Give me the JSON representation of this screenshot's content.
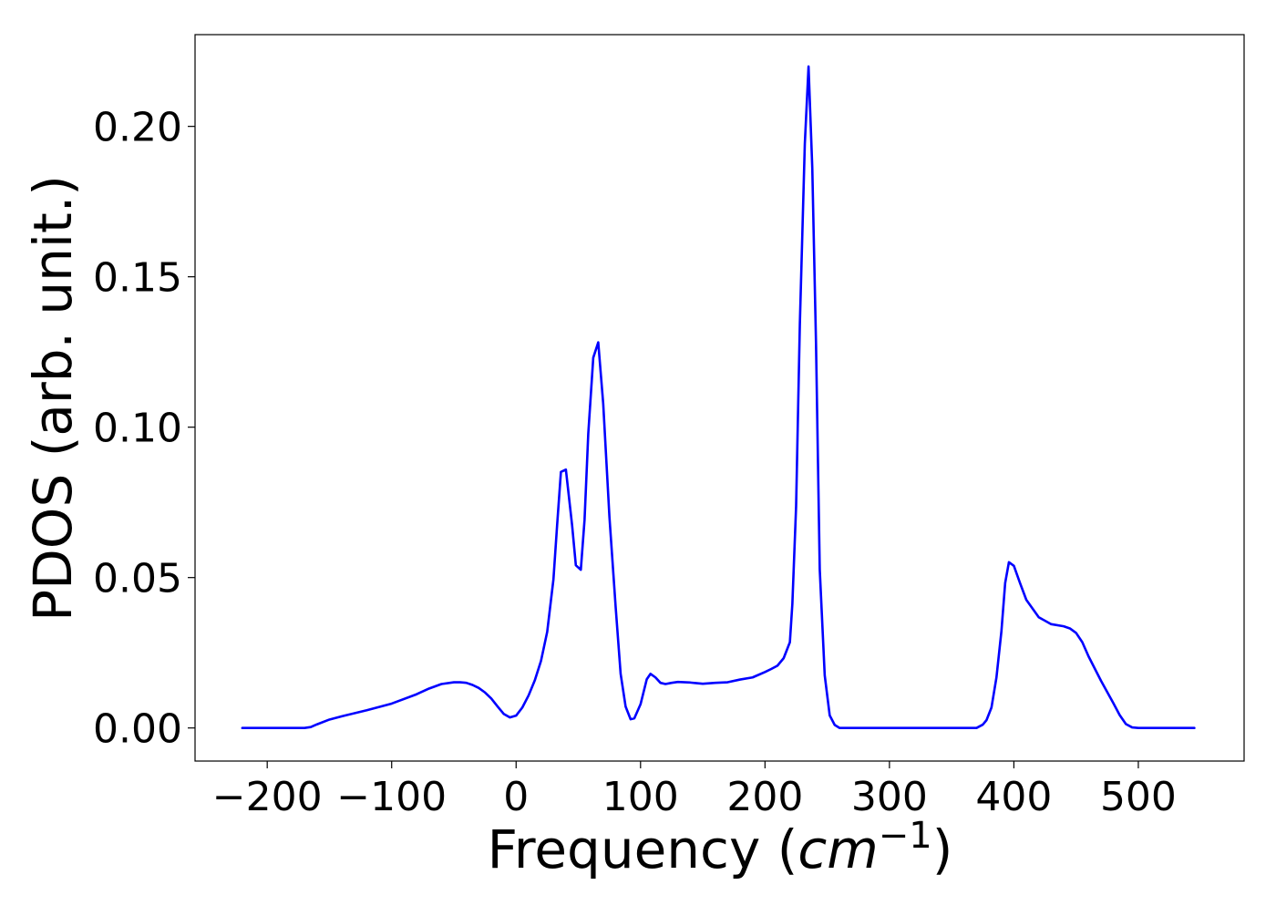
{
  "chart_data": {
    "type": "line",
    "title": "",
    "xlabel_text": "Frequency (",
    "xlabel_math": "cm",
    "xlabel_sup": "−1",
    "xlabel_close": ")",
    "ylabel": "PDOS (arb. unit.)",
    "xlim": [
      -258,
      585
    ],
    "ylim": [
      -0.011,
      0.2305
    ],
    "x_ticks": [
      -200,
      -100,
      0,
      100,
      200,
      300,
      400,
      500
    ],
    "x_tick_labels": [
      "−200",
      "−100",
      "0",
      "100",
      "200",
      "300",
      "400",
      "500"
    ],
    "y_ticks": [
      0.0,
      0.05,
      0.1,
      0.15,
      0.2
    ],
    "y_tick_labels": [
      "0.00",
      "0.05",
      "0.10",
      "0.15",
      "0.20"
    ],
    "grid": false,
    "legend": false,
    "series": [
      {
        "color": "#0000ff",
        "x": [
          -220,
          -170,
          -165,
          -160,
          -150,
          -140,
          -120,
          -100,
          -80,
          -70,
          -60,
          -50,
          -45,
          -40,
          -35,
          -30,
          -25,
          -20,
          -15,
          -10,
          -5,
          0,
          5,
          10,
          15,
          20,
          25,
          30,
          33,
          36,
          40,
          45,
          48,
          52,
          55,
          58,
          62,
          66,
          70,
          75,
          80,
          84,
          88,
          92,
          95,
          100,
          105,
          108,
          112,
          116,
          120,
          125,
          130,
          140,
          150,
          160,
          170,
          180,
          190,
          200,
          205,
          210,
          215,
          220,
          222,
          225,
          228,
          232,
          235,
          238,
          241,
          244,
          248,
          252,
          256,
          260,
          265,
          270,
          300,
          350,
          370,
          375,
          378,
          382,
          386,
          390,
          393,
          396,
          400,
          405,
          410,
          420,
          430,
          440,
          445,
          450,
          455,
          460,
          470,
          480,
          485,
          490,
          495,
          500,
          510,
          545
        ],
        "y": [
          0.0,
          0.0,
          0.0003,
          0.0012,
          0.0028,
          0.0039,
          0.0059,
          0.0081,
          0.0112,
          0.0131,
          0.0146,
          0.0152,
          0.0152,
          0.015,
          0.0143,
          0.0133,
          0.0118,
          0.0098,
          0.0072,
          0.0047,
          0.0035,
          0.0041,
          0.0068,
          0.0108,
          0.0158,
          0.0223,
          0.032,
          0.0494,
          0.0677,
          0.0851,
          0.0859,
          0.0674,
          0.0541,
          0.0526,
          0.0692,
          0.0979,
          0.1231,
          0.1282,
          0.1078,
          0.0701,
          0.0402,
          0.018,
          0.0071,
          0.0029,
          0.0032,
          0.0079,
          0.0162,
          0.018,
          0.0168,
          0.015,
          0.0146,
          0.015,
          0.0153,
          0.0151,
          0.0147,
          0.015,
          0.0152,
          0.0161,
          0.0168,
          0.0186,
          0.0196,
          0.0207,
          0.0232,
          0.0285,
          0.0413,
          0.0737,
          0.1342,
          0.1942,
          0.2199,
          0.1862,
          0.1277,
          0.0527,
          0.0175,
          0.0042,
          0.001,
          0.0,
          0.0,
          0.0,
          0.0,
          0.0,
          0.0,
          0.0011,
          0.0026,
          0.0068,
          0.0168,
          0.0322,
          0.0482,
          0.0551,
          0.0539,
          0.0481,
          0.0426,
          0.0368,
          0.0345,
          0.0338,
          0.0331,
          0.0316,
          0.0285,
          0.0238,
          0.0157,
          0.0082,
          0.0043,
          0.0013,
          0.0002,
          0.0,
          0.0,
          0.0
        ]
      }
    ]
  }
}
